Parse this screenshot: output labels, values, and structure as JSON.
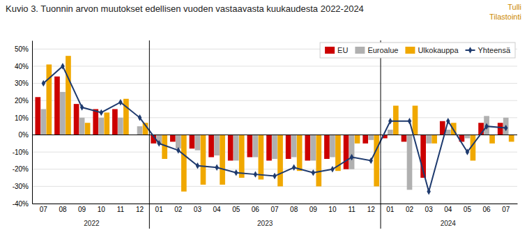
{
  "chart_data": {
    "type": "bar",
    "title": "Kuvio 3. Tuonnin arvon muutokset edellisen vuoden vastaavasta kuukaudesta 2022-2024",
    "categories": [
      "07",
      "08",
      "09",
      "10",
      "11",
      "12",
      "01",
      "02",
      "03",
      "04",
      "05",
      "06",
      "07",
      "08",
      "09",
      "10",
      "11",
      "12",
      "01",
      "02",
      "03",
      "04",
      "05",
      "06",
      "07"
    ],
    "series": [
      {
        "name": "EU",
        "type": "bar",
        "color": "#cc0000",
        "values": [
          22,
          34,
          18,
          15,
          15,
          0,
          -5,
          -4,
          -8,
          -13,
          -15,
          -13,
          -15,
          -14,
          -15,
          -14,
          -20,
          -5,
          -2,
          -4,
          -25,
          8,
          -4,
          7,
          7
        ]
      },
      {
        "name": "Euroalue",
        "type": "bar",
        "color": "#b0b0b0",
        "values": [
          15,
          25,
          10,
          10,
          10,
          5,
          -5,
          -8,
          -9,
          -12,
          -15,
          -13,
          -14,
          -13,
          -15,
          -13,
          -20,
          -3,
          3,
          -32,
          -5,
          3,
          -2,
          11,
          10
        ]
      },
      {
        "name": "Ulkokauppa",
        "type": "bar",
        "color": "#f0a800",
        "values": [
          41,
          46,
          7,
          13,
          21,
          7,
          -14,
          -33,
          -29,
          -29,
          -25,
          -26,
          -30,
          -21,
          -30,
          -21,
          -5,
          -30,
          17,
          17,
          -5,
          7,
          -15,
          -5,
          -4
        ]
      },
      {
        "name": "Yhteensä",
        "type": "line",
        "color": "#1e3a6e",
        "marker": "diamond",
        "values": [
          30,
          40,
          16,
          13,
          19,
          10,
          -5,
          -9,
          -18,
          -19,
          -22,
          -23,
          -24,
          -19,
          -22,
          -20,
          -13,
          -15,
          8,
          8,
          -33,
          8,
          -10,
          5,
          4
        ]
      }
    ],
    "annotations": [
      {
        "text": "2022",
        "from": 0,
        "to": 5
      },
      {
        "text": "2023",
        "from": 6,
        "to": 17
      },
      {
        "text": "2024",
        "from": 18,
        "to": 24
      },
      {
        "text": "Tulli\nTilastointi"
      }
    ],
    "ylim": [
      -40,
      55
    ],
    "yticks": [
      {
        "value": -40,
        "label": "-40%"
      },
      {
        "value": -30,
        "label": "-30%"
      },
      {
        "value": -20,
        "label": "-20%"
      },
      {
        "value": -10,
        "label": "-10%"
      },
      {
        "value": 0,
        "label": "0%"
      },
      {
        "value": 10,
        "label": "10%"
      },
      {
        "value": 20,
        "label": "20%"
      },
      {
        "value": 30,
        "label": "30%"
      },
      {
        "value": 40,
        "label": "40%"
      },
      {
        "value": 50,
        "label": "50%"
      }
    ],
    "grid": true,
    "legend": "upper right"
  }
}
